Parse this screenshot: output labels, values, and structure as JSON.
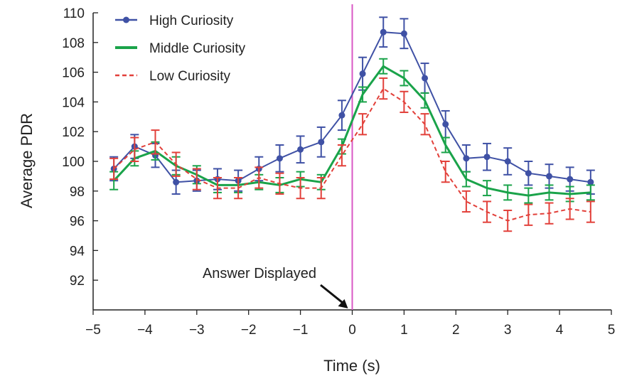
{
  "chart_data": {
    "type": "line",
    "title": "",
    "xlabel": "Time (s)",
    "ylabel": "Average PDR",
    "xlim": [
      -5,
      5
    ],
    "ylim": [
      90,
      110
    ],
    "xticks": [
      -5,
      -4,
      -3,
      -2,
      -1,
      0,
      1,
      2,
      3,
      4,
      5
    ],
    "xtick_labels": [
      "−5",
      "−4",
      "−3",
      "−2",
      "−1",
      "0",
      "1",
      "2",
      "3",
      "4",
      "5"
    ],
    "yticks": [
      92,
      94,
      96,
      98,
      100,
      102,
      104,
      106,
      108,
      110
    ],
    "grid": false,
    "legend_position": "top-left",
    "x": [
      -4.6,
      -4.2,
      -3.8,
      -3.4,
      -3.0,
      -2.6,
      -2.2,
      -1.8,
      -1.4,
      -1.0,
      -0.6,
      -0.2,
      0.2,
      0.6,
      1.0,
      1.4,
      1.8,
      2.2,
      2.6,
      3.0,
      3.4,
      3.8,
      4.2,
      4.6
    ],
    "series": [
      {
        "name": "High Curiosity",
        "color": "#3f51a5",
        "style": "solid-marker",
        "values": [
          99.5,
          101.0,
          100.4,
          98.6,
          98.7,
          98.8,
          98.7,
          99.5,
          100.2,
          100.8,
          101.3,
          103.1,
          105.9,
          108.7,
          108.6,
          105.6,
          102.5,
          100.2,
          100.3,
          100.0,
          99.2,
          99.0,
          98.8,
          98.6
        ],
        "errors": [
          0.8,
          0.8,
          0.8,
          0.8,
          0.7,
          0.7,
          0.7,
          0.8,
          0.9,
          0.9,
          1.0,
          1.0,
          1.1,
          1.0,
          1.0,
          1.0,
          0.9,
          0.9,
          0.9,
          0.9,
          0.8,
          0.8,
          0.8,
          0.8
        ]
      },
      {
        "name": "Middle Curiosity",
        "color": "#1aa34a",
        "style": "solid",
        "values": [
          98.7,
          100.2,
          100.7,
          99.7,
          99.1,
          98.4,
          98.4,
          98.6,
          98.4,
          98.8,
          98.6,
          101.0,
          104.5,
          106.4,
          105.6,
          104.1,
          101.1,
          98.8,
          98.2,
          97.9,
          97.7,
          97.9,
          97.8,
          97.9
        ],
        "errors": [
          0.6,
          0.5,
          0.6,
          0.6,
          0.6,
          0.5,
          0.5,
          0.5,
          0.5,
          0.5,
          0.5,
          0.5,
          0.5,
          0.5,
          0.5,
          0.5,
          0.5,
          0.5,
          0.5,
          0.5,
          0.5,
          0.5,
          0.5,
          0.5
        ]
      },
      {
        "name": "Low Curiosity",
        "color": "#e2403a",
        "style": "dashed",
        "values": [
          99.5,
          100.8,
          101.3,
          99.8,
          98.8,
          98.2,
          98.2,
          98.9,
          98.5,
          98.2,
          98.2,
          100.4,
          102.5,
          104.9,
          104.0,
          102.5,
          99.3,
          97.3,
          96.6,
          96.0,
          96.4,
          96.5,
          96.8,
          96.6
        ],
        "errors": [
          0.7,
          0.8,
          0.8,
          0.8,
          0.7,
          0.7,
          0.7,
          0.7,
          0.7,
          0.7,
          0.7,
          0.7,
          0.7,
          0.7,
          0.7,
          0.7,
          0.7,
          0.7,
          0.7,
          0.7,
          0.7,
          0.7,
          0.7,
          0.7
        ]
      }
    ],
    "reference_line": {
      "x": 0,
      "color": "#d957c4"
    },
    "annotation": {
      "text": "Answer Displayed",
      "target_x": 0,
      "target_y": 90.1
    }
  }
}
